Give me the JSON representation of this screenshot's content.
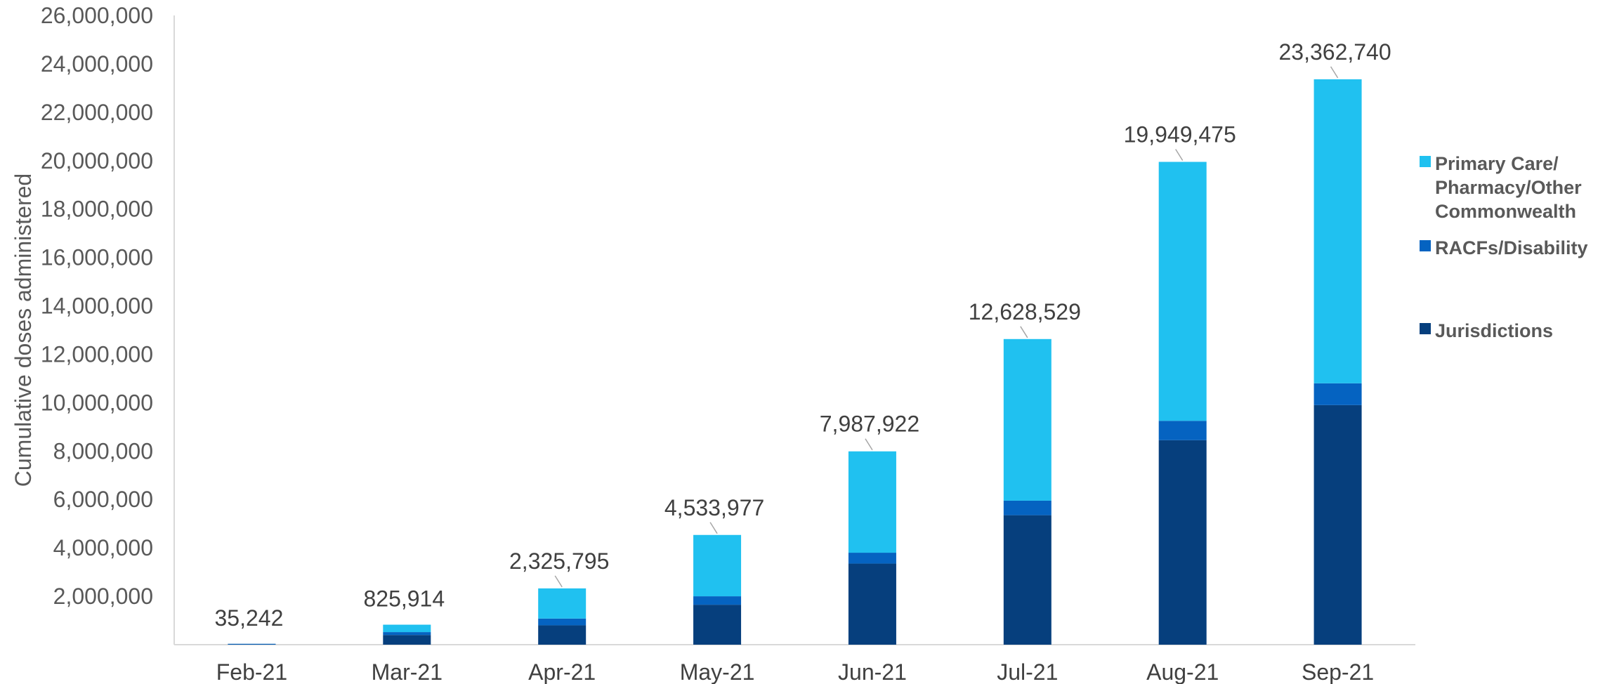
{
  "chart_data": {
    "type": "bar",
    "stacked": true,
    "title": "",
    "xlabel": "",
    "ylabel": "Cumulative doses administered",
    "ylim": [
      0,
      26000000
    ],
    "y_ticks": [
      "2,000,000",
      "4,000,000",
      "6,000,000",
      "8,000,000",
      "10,000,000",
      "12,000,000",
      "14,000,000",
      "16,000,000",
      "18,000,000",
      "20,000,000",
      "22,000,000",
      "24,000,000",
      "26,000,000"
    ],
    "y_tick_values": [
      2000000,
      4000000,
      6000000,
      8000000,
      10000000,
      12000000,
      14000000,
      16000000,
      18000000,
      20000000,
      22000000,
      24000000,
      26000000
    ],
    "categories": [
      "Feb-21",
      "Mar-21",
      "Apr-21",
      "May-21",
      "Jun-21",
      "Jul-21",
      "Aug-21",
      "Sep-21"
    ],
    "series": [
      {
        "name": "Jurisdictions",
        "color": "#063f7d",
        "values": [
          30000,
          400000,
          800000,
          1650000,
          3350000,
          5350000,
          8450000,
          9900000
        ]
      },
      {
        "name": "RACFs/Disability",
        "color": "#0563c1",
        "values": [
          5242,
          120000,
          280000,
          350000,
          450000,
          600000,
          800000,
          900000
        ]
      },
      {
        "name": "Primary Care/ Pharmacy/Other Commonwealth",
        "color": "#20c1f0",
        "values": [
          0,
          305914,
          1245795,
          2533977,
          4187922,
          6678529,
          10699475,
          12562740
        ]
      }
    ],
    "totals": [
      35242,
      825914,
      2325795,
      4533977,
      7987922,
      12628529,
      19949475,
      23362740
    ],
    "total_labels": [
      "35,242",
      "825,914",
      "2,325,795",
      "4,533,977",
      "7,987,922",
      "12,628,529",
      "19,949,475",
      "23,362,740"
    ],
    "legend": {
      "position": "right",
      "items": [
        {
          "lines": [
            "Primary Care/",
            "Pharmacy/Other",
            "Commonwealth"
          ],
          "color": "#20c1f0"
        },
        {
          "lines": [
            "RACFs/Disability"
          ],
          "color": "#0563c1"
        },
        {
          "lines": [
            "Jurisdictions"
          ],
          "color": "#063f7d"
        }
      ]
    },
    "grid": false
  }
}
